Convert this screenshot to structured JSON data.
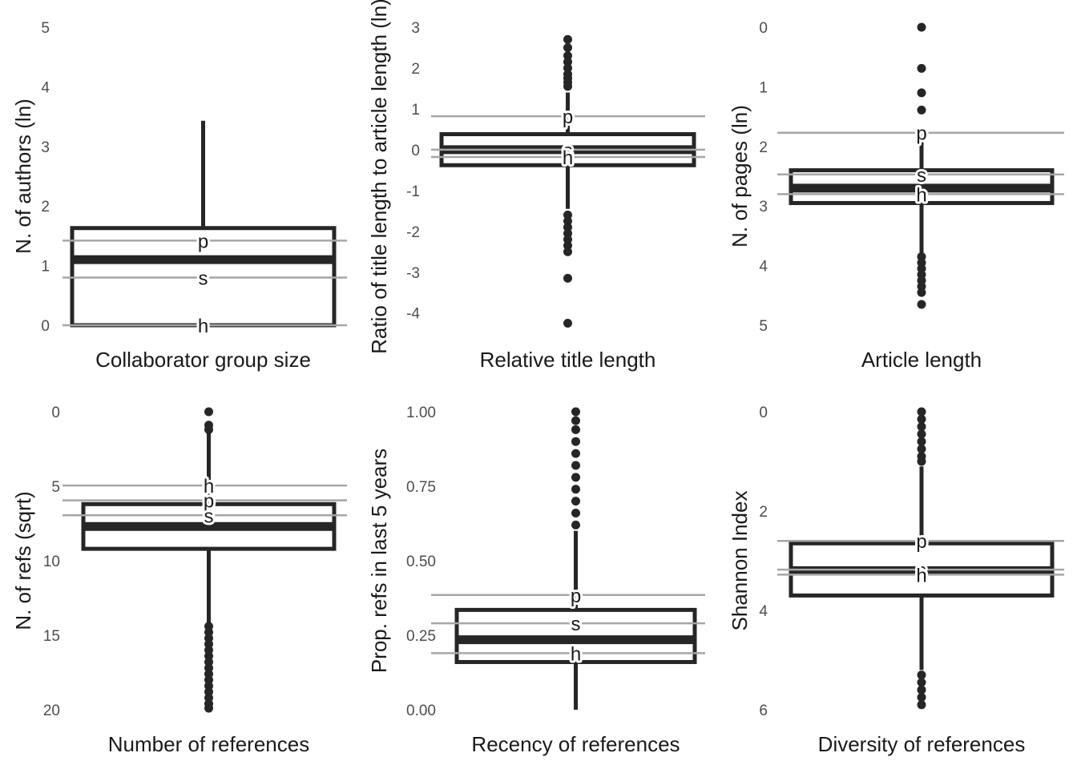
{
  "chart_data": [
    {
      "type": "boxplot",
      "xlabel": "Collaborator group size",
      "ylabel": "N. of authors (ln)",
      "ylim": [
        0,
        5
      ],
      "reversed": false,
      "ticks": [
        0,
        1,
        2,
        3,
        4,
        5
      ],
      "tick_labels": [
        "0",
        "1",
        "2",
        "3",
        "4",
        "5"
      ],
      "box": {
        "q1": 0,
        "median": 1.1,
        "q3": 1.63,
        "whisker_low": 0,
        "whisker_high": 3.43
      },
      "outliers": [],
      "reference_lines": [
        {
          "label": "p",
          "value": 1.42
        },
        {
          "label": "s",
          "value": 0.8
        },
        {
          "label": "h",
          "value": 0
        }
      ]
    },
    {
      "type": "boxplot",
      "xlabel": "Relative title length",
      "ylabel": "Ratio of title length to article length (ln)",
      "ylim": [
        -4.3,
        3
      ],
      "reversed": false,
      "ticks": [
        -4,
        -3,
        -2,
        -1,
        0,
        1,
        2,
        3
      ],
      "tick_labels": [
        "-4",
        "-3",
        "-2",
        "-1",
        "0",
        "1",
        "2",
        "3"
      ],
      "box": {
        "q1": -0.38,
        "median": 0,
        "q3": 0.38,
        "whisker_low": -1.45,
        "whisker_high": 1.4
      },
      "outliers": [
        -4.25,
        -3.15,
        -2.5,
        -2.35,
        -2.2,
        -2.05,
        -1.9,
        -1.75,
        -1.6,
        1.55,
        1.65,
        1.75,
        1.85,
        2.0,
        2.15,
        2.3,
        2.5,
        2.7
      ],
      "reference_lines": [
        {
          "label": "p",
          "value": 0.82
        },
        {
          "label": "s",
          "value": 0
        },
        {
          "label": "h",
          "value": -0.18
        }
      ]
    },
    {
      "type": "boxplot",
      "xlabel": "Article length",
      "ylabel": "N. of pages (ln)",
      "ylim": [
        0,
        5
      ],
      "reversed": true,
      "ticks": [
        0,
        1,
        2,
        3,
        4,
        5
      ],
      "tick_labels": [
        "0",
        "1",
        "2",
        "3",
        "4",
        "5"
      ],
      "box": {
        "q1": 2.4,
        "median": 2.7,
        "q3": 2.95,
        "whisker_low": 1.7,
        "whisker_high": 3.8
      },
      "outliers": [
        0,
        0.69,
        1.1,
        1.39,
        3.85,
        3.95,
        4.05,
        4.15,
        4.25,
        4.35,
        4.45,
        4.65
      ],
      "reference_lines": [
        {
          "label": "p",
          "value": 1.77
        },
        {
          "label": "s",
          "value": 2.47
        },
        {
          "label": "h",
          "value": 2.8
        }
      ]
    },
    {
      "type": "boxplot",
      "xlabel": "Number of references",
      "ylabel": "N. of refs (sqrt)",
      "ylim": [
        0,
        20
      ],
      "reversed": true,
      "ticks": [
        0,
        5,
        10,
        15,
        20
      ],
      "tick_labels": [
        "0",
        "5",
        "10",
        "15",
        "20"
      ],
      "box": {
        "q1": 6.2,
        "median": 7.7,
        "q3": 9.2,
        "whisker_low": 1.4,
        "whisker_high": 14.2
      },
      "outliers": [
        0,
        0.9,
        1.2,
        14.4,
        14.8,
        15.2,
        15.6,
        16.0,
        16.4,
        16.8,
        17.2,
        17.6,
        18.0,
        18.4,
        18.8,
        19.2,
        19.6,
        19.9
      ],
      "reference_lines": [
        {
          "label": "h",
          "value": 4.95
        },
        {
          "label": "p",
          "value": 5.95
        },
        {
          "label": "s",
          "value": 6.95
        }
      ]
    },
    {
      "type": "boxplot",
      "xlabel": "Recency of references",
      "ylabel": "Prop. refs in last 5 years",
      "ylim": [
        0,
        1
      ],
      "reversed": false,
      "ticks": [
        0,
        0.25,
        0.5,
        0.75,
        1
      ],
      "tick_labels": [
        "0.00",
        "0.25",
        "0.50",
        "0.75",
        "1.00"
      ],
      "box": {
        "q1": 0.16,
        "median": 0.235,
        "q3": 0.335,
        "whisker_low": 0,
        "whisker_high": 0.6
      },
      "outliers": [
        0.62,
        0.66,
        0.7,
        0.74,
        0.78,
        0.82,
        0.86,
        0.9,
        0.94,
        0.97,
        1.0
      ],
      "reference_lines": [
        {
          "label": "p",
          "value": 0.385
        },
        {
          "label": "s",
          "value": 0.29
        },
        {
          "label": "h",
          "value": 0.19
        }
      ]
    },
    {
      "type": "boxplot",
      "xlabel": "Diversity of references",
      "ylabel": "Shannon Index",
      "ylim": [
        0,
        6
      ],
      "reversed": true,
      "ticks": [
        0,
        2,
        4,
        6
      ],
      "tick_labels": [
        "0",
        "2",
        "4",
        "6"
      ],
      "box": {
        "q1": 2.65,
        "median": 3.2,
        "q3": 3.7,
        "whisker_low": 1.1,
        "whisker_high": 5.2
      },
      "outliers": [
        0,
        0.15,
        0.3,
        0.45,
        0.6,
        0.75,
        0.9,
        1.0,
        5.3,
        5.45,
        5.6,
        5.75,
        5.9
      ],
      "reference_lines": [
        {
          "label": "p",
          "value": 2.6
        },
        {
          "label": "s",
          "value": 3.18
        },
        {
          "label": "h",
          "value": 3.28
        }
      ]
    }
  ],
  "colors": {
    "box": "#262626",
    "reference_line": "#a6a6a6",
    "point": "#262626",
    "tick_text": "#4d4d4d",
    "title_text": "#1a1a1a"
  }
}
